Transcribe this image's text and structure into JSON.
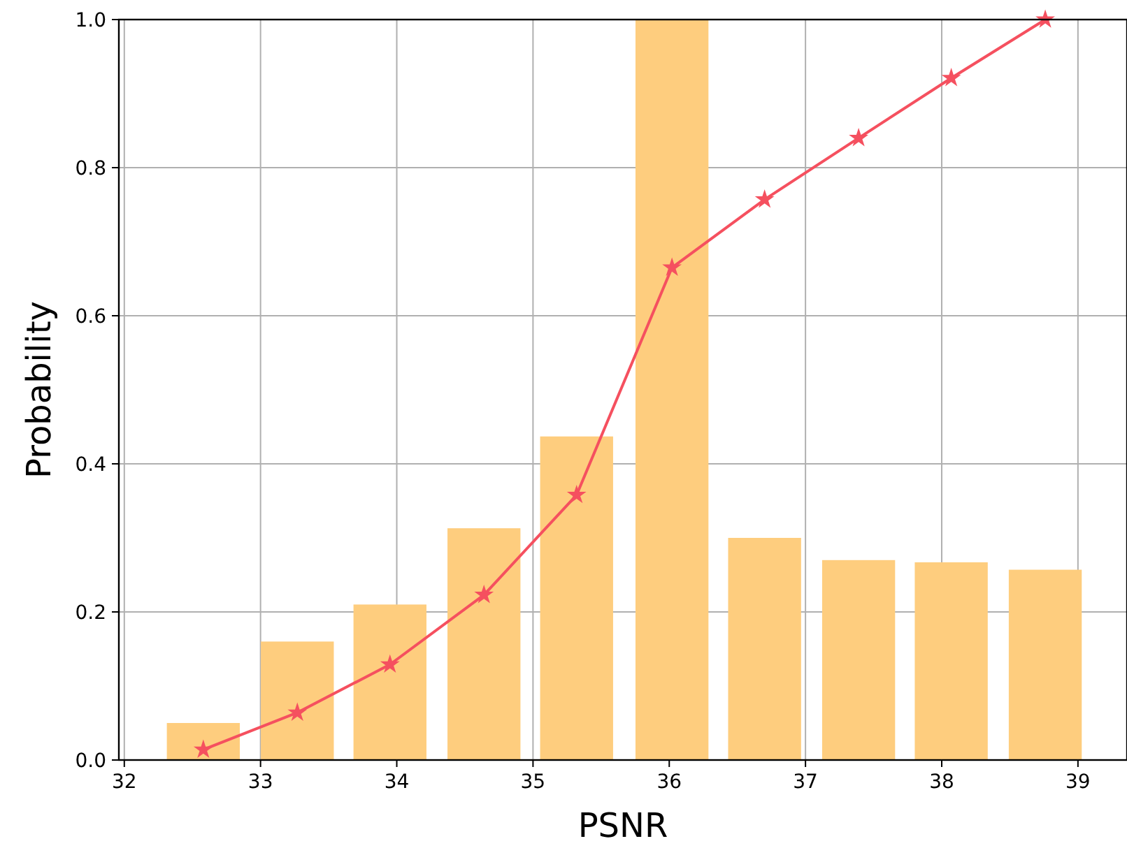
{
  "chart_data": {
    "type": "bar",
    "xlabel": "PSNR",
    "ylabel": "Probability",
    "x": [
      32.58,
      33.27,
      33.95,
      34.64,
      35.32,
      36.02,
      36.7,
      37.39,
      38.07,
      38.76
    ],
    "series": [
      {
        "color": "#fecd7e",
        "values": [
          0.05,
          0.16,
          0.21,
          0.313,
          0.437,
          1.0,
          0.3,
          0.27,
          0.267,
          0.257
        ]
      },
      {
        "type": "line",
        "color": "#f5505f",
        "marker": "star",
        "values": [
          0.014,
          0.064,
          0.129,
          0.223,
          0.358,
          0.665,
          0.757,
          0.84,
          0.921,
          1.0
        ]
      }
    ],
    "xlim": [
      31.96,
      39.36
    ],
    "ylim": [
      0,
      1
    ],
    "xticks": [
      32,
      33,
      34,
      35,
      36,
      37,
      38,
      39
    ],
    "yticks": [
      {
        "value": 0,
        "label": "0.0"
      },
      {
        "value": 0.2,
        "label": "0.2"
      },
      {
        "value": 0.4,
        "label": "0.4"
      },
      {
        "value": 0.6,
        "label": "0.6"
      },
      {
        "value": 0.8,
        "label": "0.8"
      },
      {
        "value": 1,
        "label": "1.0"
      }
    ],
    "grid": true
  }
}
